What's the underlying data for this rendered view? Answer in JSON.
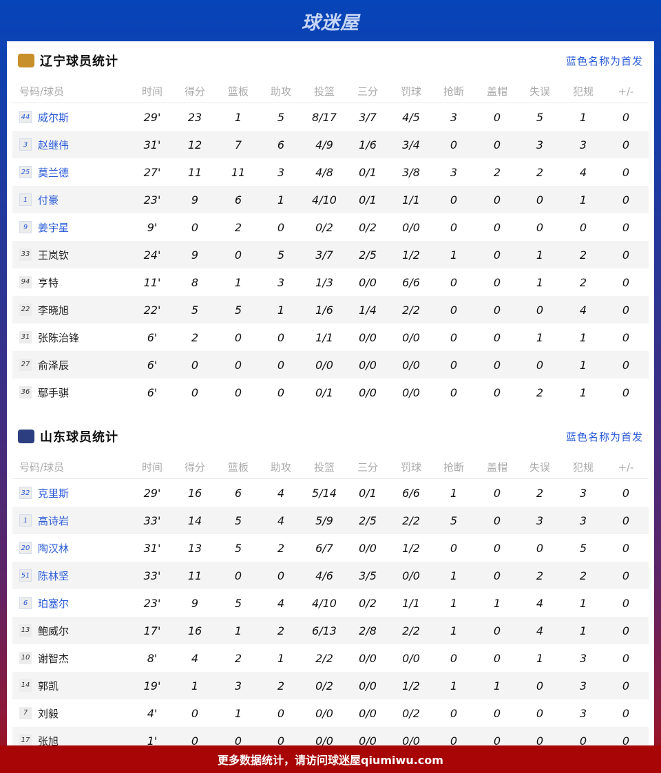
{
  "brand": "球迷屋",
  "starter_note": "蓝色名称为首发",
  "columns": [
    "号码/球员",
    "时间",
    "得分",
    "篮板",
    "助攻",
    "投篮",
    "三分",
    "罚球",
    "抢断",
    "盖帽",
    "失误",
    "犯规",
    "+/-"
  ],
  "teams": [
    {
      "title": "辽宁球员统计",
      "logo": "liaoning-logo",
      "color": "#c8902a",
      "players": [
        {
          "num": "44",
          "name": "威尔斯",
          "starter": true,
          "stats": [
            "29'",
            "23",
            "1",
            "5",
            "8/17",
            "3/7",
            "4/5",
            "3",
            "0",
            "5",
            "1",
            "0"
          ]
        },
        {
          "num": "3",
          "name": "赵继伟",
          "starter": true,
          "stats": [
            "31'",
            "12",
            "7",
            "6",
            "4/9",
            "1/6",
            "3/4",
            "0",
            "0",
            "3",
            "3",
            "0"
          ]
        },
        {
          "num": "25",
          "name": "莫兰德",
          "starter": true,
          "stats": [
            "27'",
            "11",
            "11",
            "3",
            "4/8",
            "0/1",
            "3/8",
            "3",
            "2",
            "2",
            "4",
            "0"
          ]
        },
        {
          "num": "1",
          "name": "付豪",
          "starter": true,
          "stats": [
            "23'",
            "9",
            "6",
            "1",
            "4/10",
            "0/1",
            "1/1",
            "0",
            "0",
            "0",
            "1",
            "0"
          ]
        },
        {
          "num": "9",
          "name": "姜宇星",
          "starter": true,
          "stats": [
            "9'",
            "0",
            "2",
            "0",
            "0/2",
            "0/2",
            "0/0",
            "0",
            "0",
            "0",
            "0",
            "0"
          ]
        },
        {
          "num": "33",
          "name": "王岚钦",
          "starter": false,
          "stats": [
            "24'",
            "9",
            "0",
            "5",
            "3/7",
            "2/5",
            "1/2",
            "1",
            "0",
            "1",
            "2",
            "0"
          ]
        },
        {
          "num": "94",
          "name": "亨特",
          "starter": false,
          "stats": [
            "11'",
            "8",
            "1",
            "3",
            "1/3",
            "0/0",
            "6/6",
            "0",
            "0",
            "1",
            "2",
            "0"
          ]
        },
        {
          "num": "22",
          "name": "李晓旭",
          "starter": false,
          "stats": [
            "22'",
            "5",
            "5",
            "1",
            "1/6",
            "1/4",
            "2/2",
            "0",
            "0",
            "0",
            "4",
            "0"
          ]
        },
        {
          "num": "31",
          "name": "张陈治锋",
          "starter": false,
          "stats": [
            "6'",
            "2",
            "0",
            "0",
            "1/1",
            "0/0",
            "0/0",
            "0",
            "0",
            "1",
            "1",
            "0"
          ]
        },
        {
          "num": "27",
          "name": "俞泽辰",
          "starter": false,
          "stats": [
            "6'",
            "0",
            "0",
            "0",
            "0/0",
            "0/0",
            "0/0",
            "0",
            "0",
            "0",
            "1",
            "0"
          ]
        },
        {
          "num": "36",
          "name": "鄢手骐",
          "starter": false,
          "stats": [
            "6'",
            "0",
            "0",
            "0",
            "0/1",
            "0/0",
            "0/0",
            "0",
            "0",
            "2",
            "1",
            "0"
          ]
        }
      ]
    },
    {
      "title": "山东球员统计",
      "logo": "shandong-logo",
      "color": "#2c3e80",
      "players": [
        {
          "num": "32",
          "name": "克里斯",
          "starter": true,
          "stats": [
            "29'",
            "16",
            "6",
            "4",
            "5/14",
            "0/1",
            "6/6",
            "1",
            "0",
            "2",
            "3",
            "0"
          ]
        },
        {
          "num": "1",
          "name": "高诗岩",
          "starter": true,
          "stats": [
            "33'",
            "14",
            "5",
            "4",
            "5/9",
            "2/5",
            "2/2",
            "5",
            "0",
            "3",
            "3",
            "0"
          ]
        },
        {
          "num": "20",
          "name": "陶汉林",
          "starter": true,
          "stats": [
            "31'",
            "13",
            "5",
            "2",
            "6/7",
            "0/0",
            "1/2",
            "0",
            "0",
            "0",
            "5",
            "0"
          ]
        },
        {
          "num": "51",
          "name": "陈林坚",
          "starter": true,
          "stats": [
            "33'",
            "11",
            "0",
            "0",
            "4/6",
            "3/5",
            "0/0",
            "1",
            "0",
            "2",
            "2",
            "0"
          ]
        },
        {
          "num": "6",
          "name": "珀塞尔",
          "starter": true,
          "stats": [
            "23'",
            "9",
            "5",
            "4",
            "4/10",
            "0/2",
            "1/1",
            "1",
            "1",
            "4",
            "1",
            "0"
          ]
        },
        {
          "num": "13",
          "name": "鲍威尔",
          "starter": false,
          "stats": [
            "17'",
            "16",
            "1",
            "2",
            "6/13",
            "2/8",
            "2/2",
            "1",
            "0",
            "4",
            "1",
            "0"
          ]
        },
        {
          "num": "10",
          "name": "谢智杰",
          "starter": false,
          "stats": [
            "8'",
            "4",
            "2",
            "1",
            "2/2",
            "0/0",
            "0/0",
            "0",
            "0",
            "1",
            "3",
            "0"
          ]
        },
        {
          "num": "14",
          "name": "郭凯",
          "starter": false,
          "stats": [
            "19'",
            "1",
            "3",
            "2",
            "0/2",
            "0/0",
            "1/2",
            "1",
            "1",
            "0",
            "3",
            "0"
          ]
        },
        {
          "num": "7",
          "name": "刘毅",
          "starter": false,
          "stats": [
            "4'",
            "0",
            "1",
            "0",
            "0/0",
            "0/0",
            "0/2",
            "0",
            "0",
            "0",
            "3",
            "0"
          ]
        },
        {
          "num": "17",
          "name": "张旭",
          "starter": false,
          "stats": [
            "1'",
            "0",
            "0",
            "0",
            "0/0",
            "0/0",
            "0/0",
            "0",
            "0",
            "0",
            "0",
            "0"
          ]
        }
      ]
    }
  ],
  "footer": "更多数据统计，请访问球迷屋qiumiwu.com"
}
